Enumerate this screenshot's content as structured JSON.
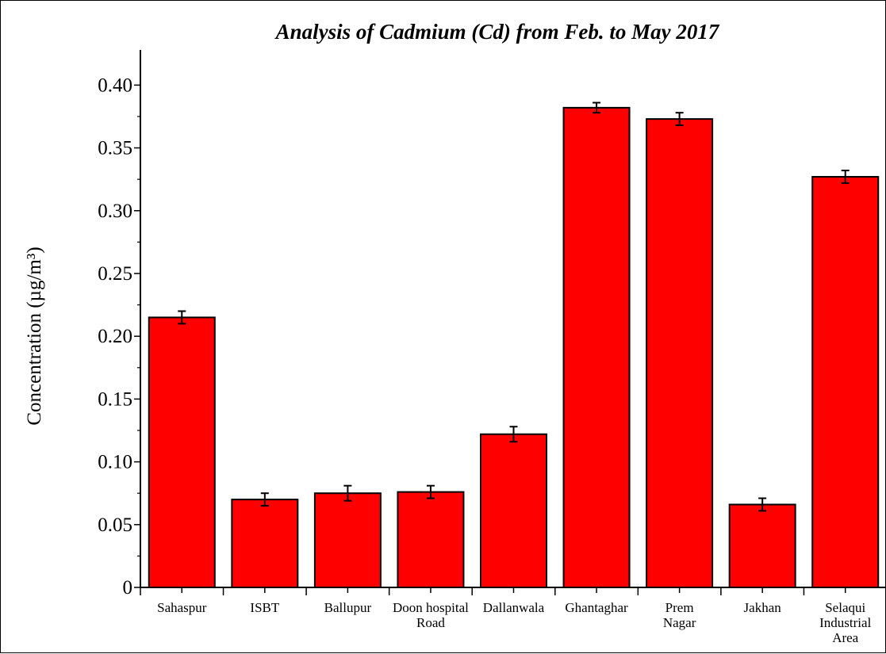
{
  "chart_data": {
    "type": "bar",
    "title": "Analysis of  Cadmium (Cd) from Feb. to May 2017",
    "ylabel": "Concentration (µg/m³)",
    "xlabel": "",
    "categories": [
      "Sahaspur",
      "ISBT",
      "Ballupur",
      "Doon hospital Road",
      "Dallanwala",
      "Ghantaghar",
      "Prem Nagar",
      "Jakhan",
      "Selaqui Industrial Area"
    ],
    "category_lines": [
      [
        "Sahaspur"
      ],
      [
        "ISBT"
      ],
      [
        "Ballupur"
      ],
      [
        "Doon hospital",
        "Road"
      ],
      [
        "Dallanwala"
      ],
      [
        "Ghantaghar"
      ],
      [
        "Prem",
        "Nagar"
      ],
      [
        "Jakhan"
      ],
      [
        "Selaqui",
        "Industrial",
        "Area"
      ]
    ],
    "values": [
      0.215,
      0.07,
      0.075,
      0.076,
      0.122,
      0.382,
      0.373,
      0.066,
      0.327
    ],
    "errors": [
      0.005,
      0.005,
      0.006,
      0.005,
      0.006,
      0.004,
      0.005,
      0.005,
      0.005
    ],
    "yticks": [
      0,
      0.05,
      0.1,
      0.15,
      0.2,
      0.25,
      0.3,
      0.35,
      0.4
    ],
    "ytick_labels": [
      "0",
      "0.05",
      "0.10",
      "0.15",
      "0.20",
      "0.25",
      "0.30",
      "0.35",
      "0.40"
    ],
    "ylim": [
      0,
      0.428
    ],
    "bar_color": "#ff0000",
    "grid": false,
    "legend": "none"
  }
}
